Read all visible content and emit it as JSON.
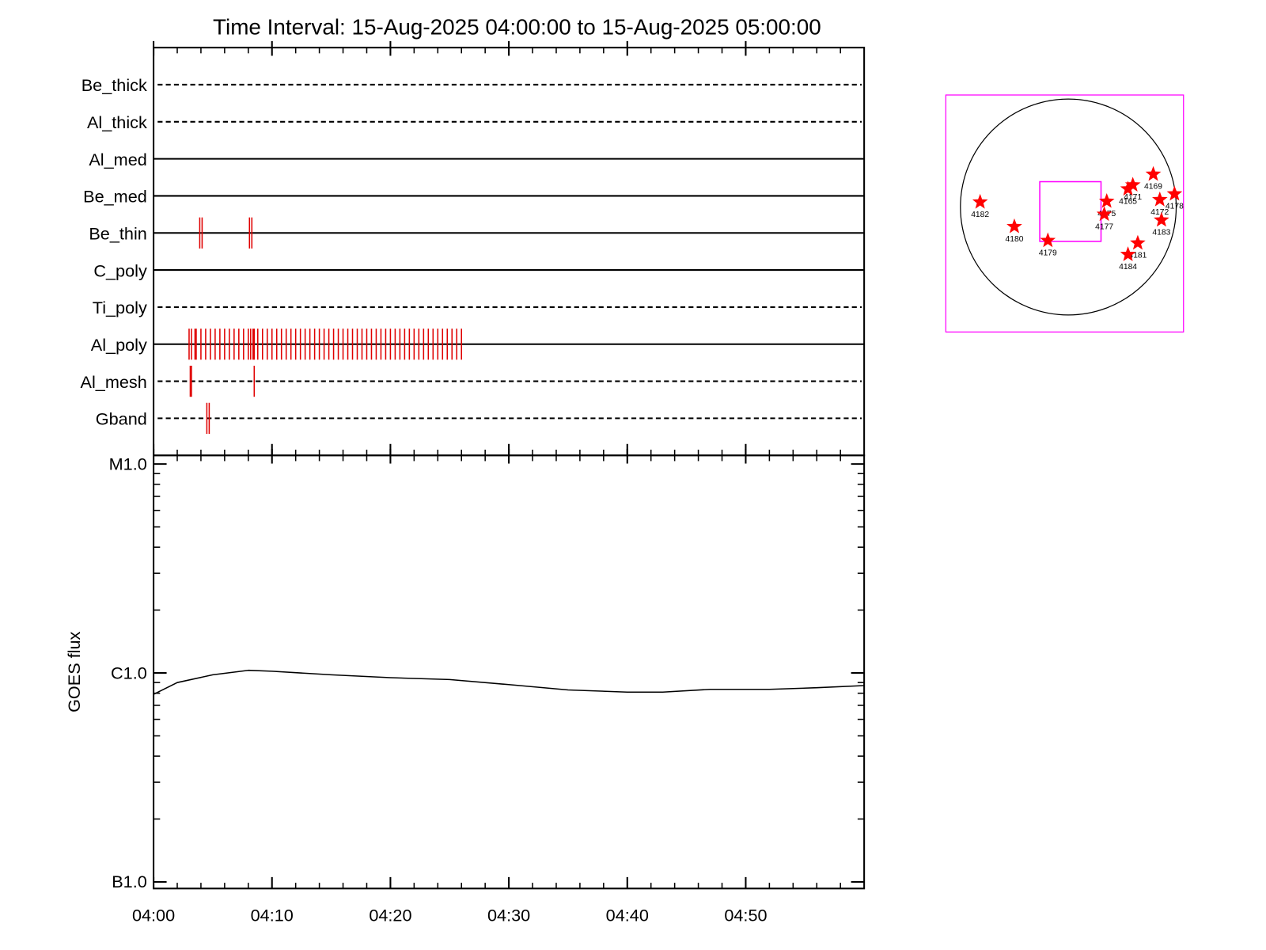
{
  "chart_data": [
    {
      "type": "event_ticks",
      "title": "Time Interval: 15-Aug-2025 04:00:00 to 15-Aug-2025 05:00:00",
      "categories": [
        "Be_thick",
        "Al_thick",
        "Al_med",
        "Be_med",
        "Be_thin",
        "C_poly",
        "Ti_poly",
        "Al_poly",
        "Al_mesh",
        "Gband"
      ],
      "line_styles": [
        "dashed",
        "dashed",
        "solid",
        "solid",
        "solid",
        "solid",
        "dashed",
        "solid",
        "dashed",
        "dashed"
      ],
      "event_color": "#e00000",
      "events": [
        [],
        [],
        [],
        [],
        [
          3.9,
          4.1,
          8.1,
          8.3
        ],
        [],
        [],
        [
          3.0,
          3.2,
          3.5,
          3.6,
          4.0,
          4.4,
          4.8,
          5.2,
          5.6,
          6.0,
          6.4,
          6.8,
          7.2,
          7.6,
          8.0,
          8.2,
          8.4,
          8.5,
          8.8,
          9.2,
          9.6,
          10.0,
          10.4,
          10.8,
          11.2,
          11.6,
          12.0,
          12.4,
          12.8,
          13.2,
          13.6,
          14.0,
          14.4,
          14.8,
          15.2,
          15.6,
          16.0,
          16.4,
          16.8,
          17.2,
          17.6,
          18.0,
          18.4,
          18.8,
          19.2,
          19.6,
          20.0,
          20.4,
          20.8,
          21.2,
          21.6,
          22.0,
          22.4,
          22.8,
          23.2,
          23.6,
          24.0,
          24.4,
          24.8,
          25.2,
          25.6,
          26.0
        ],
        [
          3.1,
          3.2,
          8.5
        ],
        [
          4.5,
          4.7
        ]
      ],
      "xlim": [
        0,
        60
      ],
      "xticks": [
        0,
        10,
        20,
        30,
        40,
        50
      ],
      "xminor": 2
    },
    {
      "type": "line",
      "ylabel": "GOES flux",
      "log_y": true,
      "x": [
        0,
        2,
        5,
        8,
        10,
        15,
        20,
        25,
        30,
        35,
        40,
        43,
        47,
        52,
        56,
        60
      ],
      "values": [
        7.9e-07,
        9e-07,
        9.8e-07,
        1.03e-06,
        1.02e-06,
        9.8e-07,
        9.5e-07,
        9.3e-07,
        8.8e-07,
        8.3e-07,
        8.1e-07,
        8.1e-07,
        8.35e-07,
        8.35e-07,
        8.5e-07,
        8.7e-07
      ],
      "color": "#000000",
      "xlim": [
        0,
        60
      ],
      "xticks": [
        {
          "value": 0,
          "label": "04:00"
        },
        {
          "value": 10,
          "label": "04:10"
        },
        {
          "value": 20,
          "label": "04:20"
        },
        {
          "value": 30,
          "label": "04:30"
        },
        {
          "value": 40,
          "label": "04:40"
        },
        {
          "value": 50,
          "label": "04:50"
        }
      ],
      "xminor": 2,
      "ylim": [
        9.3e-08,
        1.1e-05
      ],
      "yticks": [
        {
          "value": 1e-07,
          "label": "B1.0"
        },
        {
          "value": 1e-06,
          "label": "C1.0"
        },
        {
          "value": 1e-05,
          "label": "M1.0"
        }
      ]
    },
    {
      "type": "scatter",
      "labels": [
        "4182",
        "4180",
        "4179",
        "4175",
        "4177",
        "4165",
        "4171",
        "4169",
        "4172",
        "4178",
        "4183",
        "4181",
        "4184"
      ],
      "x": [
        -785,
        -480,
        -182,
        342,
        320,
        531,
        574,
        756,
        814,
        945,
        829,
        618,
        531
      ],
      "y": [
        44,
        -174,
        -298,
        51,
        -65,
        160,
        196,
        291,
        65,
        116,
        -116,
        -320,
        -422
      ],
      "color": "#ff0000",
      "frame_color": "#ff00ff",
      "disk_radius": 960,
      "fov": {
        "x": [
          -254,
          291
        ],
        "y": [
          -305,
          225
        ]
      },
      "xlim": [
        -1090,
        1025
      ],
      "ylim": [
        -1110,
        995
      ]
    }
  ]
}
